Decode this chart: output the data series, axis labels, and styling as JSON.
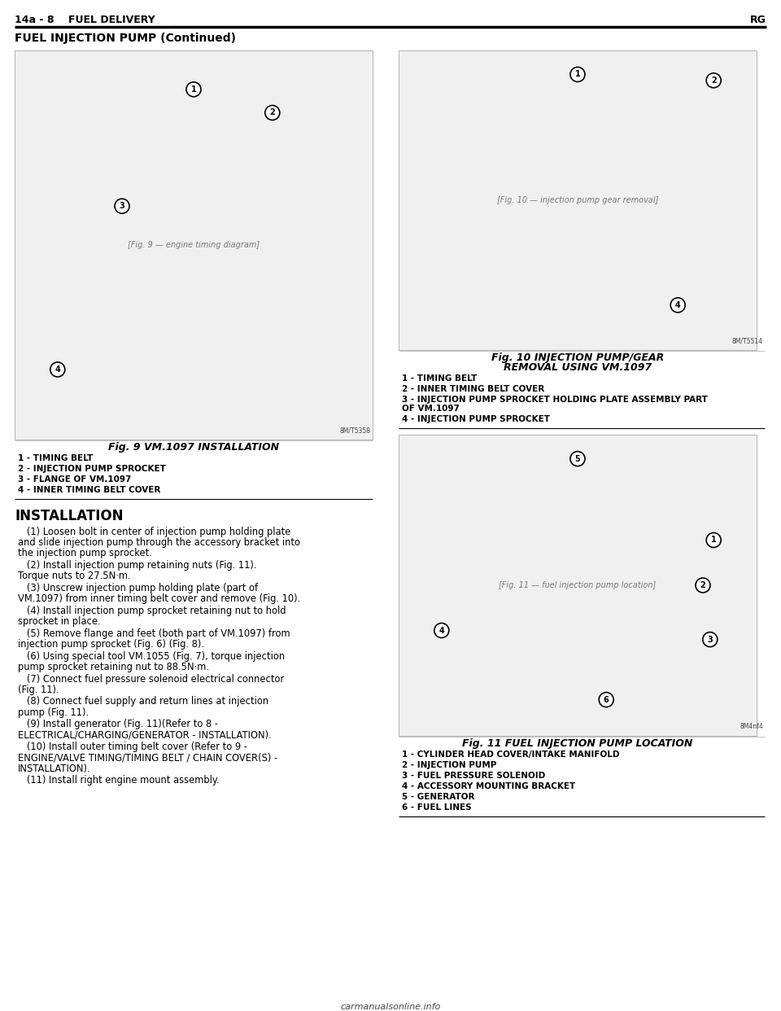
{
  "page_header_left": "14a - 8    FUEL DELIVERY",
  "page_header_right": "RG",
  "section_title": "FUEL INJECTION PUMP (Continued)",
  "fig9_caption": "Fig. 9 VM.1097 INSTALLATION",
  "fig9_labels": [
    "1 - TIMING BELT",
    "2 - INJECTION PUMP SPROCKET",
    "3 - FLANGE OF VM.1097",
    "4 - INNER TIMING BELT COVER"
  ],
  "fig10_caption_line1": "Fig. 10 INJECTION PUMP/GEAR",
  "fig10_caption_line2": "REMOVAL USING VM.1097",
  "fig10_labels": [
    "1 - TIMING BELT",
    "2 - INNER TIMING BELT COVER",
    "3 - INJECTION PUMP SPROCKET HOLDING PLATE ASSEMBLY PART OF VM.1097",
    "4 - INJECTION PUMP SPROCKET"
  ],
  "fig11_caption": "Fig. 11 FUEL INJECTION PUMP LOCATION",
  "fig11_labels": [
    "1 - CYLINDER HEAD COVER/INTAKE MANIFOLD",
    "2 - INJECTION PUMP",
    "3 - FUEL PRESSURE SOLENOID",
    "4 - ACCESSORY MOUNTING BRACKET",
    "5 - GENERATOR",
    "6 - FUEL LINES"
  ],
  "installation_title": "INSTALLATION",
  "installation_paragraphs": [
    "   (1) Loosen bolt in center of injection pump holding plate and slide injection pump through the accessory bracket into the injection pump sprocket.",
    "   (2) Install injection pump retaining nuts (Fig. 11). Torque nuts to 27.5N·m.",
    "   (3) Unscrew injection pump holding plate (part of VM.1097) from inner timing belt cover and remove (Fig. 10).",
    "   (4) Install injection pump sprocket retaining nut to hold sprocket in place.",
    "   (5) Remove flange and feet (both part of VM.1097) from injection pump sprocket (Fig. 6) (Fig. 8).",
    "   (6) Using special tool VM.1055 (Fig. 7), torque injection pump sprocket retaining nut to 88.5N·m.",
    "   (7) Connect fuel pressure solenoid electrical connector (Fig. 11).",
    "   (8) Connect fuel supply and return lines at injection pump (Fig. 11).",
    "   (9) Install generator (Fig. 11)(Refer to 8 - ELECTRICAL/CHARGING/GENERATOR - INSTALLATION).",
    "   (10) Install outer timing belt cover (Refer to 9 - ENGINE/VALVE TIMING/TIMING BELT / CHAIN COVER(S) - INSTALLATION).",
    "   (11) Install right engine mount assembly."
  ],
  "bg_color": "#ffffff",
  "text_color": "#000000",
  "header_line_color": "#000000",
  "footer_text": "carmanualsonline.info"
}
